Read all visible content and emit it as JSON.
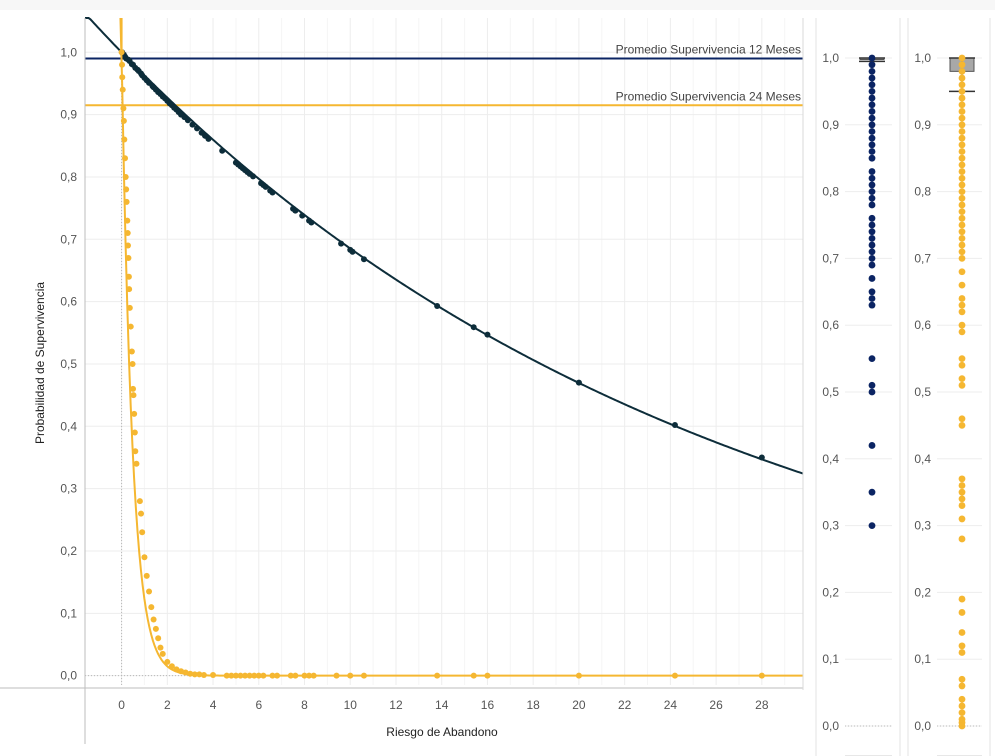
{
  "chart_data": [
    {
      "type": "scatter",
      "xlabel": "Riesgo de Abandono",
      "ylabel": "Probabilidad de Supervivencia",
      "xlim": [
        -1.6,
        29.8
      ],
      "ylim": [
        -0.015,
        1.055
      ],
      "x_ticks": [
        "0",
        "2",
        "4",
        "6",
        "8",
        "10",
        "12",
        "14",
        "16",
        "18",
        "20",
        "22",
        "24",
        "26",
        "28"
      ],
      "y_ticks": [
        "0,0",
        "0,1",
        "0,2",
        "0,3",
        "0,4",
        "0,5",
        "0,6",
        "0,7",
        "0,8",
        "0,9",
        "1,0"
      ],
      "grid": true,
      "reference_lines": [
        {
          "label": "Promedio Supervivencia 12 Meses",
          "y": 0.99,
          "color": "#0b2463"
        },
        {
          "label": "Promedio Supervivencia 24 Meses",
          "y": 0.915,
          "color": "#f5b731"
        }
      ],
      "series": [
        {
          "color": "#0d2d3a",
          "x": [
            0.02,
            0.05,
            0.1,
            0.15,
            0.2,
            0.3,
            0.35,
            0.45,
            0.5,
            0.6,
            0.7,
            0.75,
            0.85,
            0.9,
            1.0,
            1.1,
            1.2,
            1.35,
            1.4,
            1.5,
            1.6,
            1.7,
            1.8,
            1.9,
            2.0,
            2.1,
            2.2,
            2.3,
            2.4,
            2.5,
            2.6,
            2.75,
            2.9,
            3.1,
            3.3,
            3.5,
            3.65,
            3.8,
            4.4,
            5.0,
            5.1,
            5.2,
            5.3,
            5.4,
            5.5,
            5.6,
            5.75,
            6.1,
            6.2,
            6.3,
            6.5,
            6.6,
            7.5,
            7.6,
            7.9,
            8.2,
            8.3,
            9.6,
            10.0,
            10.1,
            10.6,
            13.8,
            15.4,
            16.0,
            20.0,
            24.2,
            28.0
          ],
          "y": [
            1.0,
            0.998,
            0.996,
            0.993,
            0.99,
            0.988,
            0.986,
            0.981,
            0.98,
            0.975,
            0.972,
            0.97,
            0.966,
            0.963,
            0.959,
            0.955,
            0.951,
            0.946,
            0.944,
            0.94,
            0.936,
            0.933,
            0.929,
            0.926,
            0.922,
            0.918,
            0.915,
            0.911,
            0.908,
            0.904,
            0.9,
            0.896,
            0.891,
            0.884,
            0.878,
            0.871,
            0.866,
            0.861,
            0.842,
            0.823,
            0.82,
            0.817,
            0.814,
            0.811,
            0.808,
            0.805,
            0.801,
            0.79,
            0.787,
            0.784,
            0.778,
            0.775,
            0.749,
            0.746,
            0.738,
            0.73,
            0.727,
            0.693,
            0.683,
            0.68,
            0.668,
            0.593,
            0.559,
            0.547,
            0.47,
            0.402,
            0.35
          ],
          "curve": {
            "x0": -1.6,
            "x1": 29.8,
            "rate": 0.0378
          }
        },
        {
          "color": "#f5b731",
          "x": [
            0.0,
            0.02,
            0.03,
            0.05,
            0.08,
            0.1,
            0.12,
            0.15,
            0.18,
            0.2,
            0.22,
            0.25,
            0.27,
            0.28,
            0.3,
            0.32,
            0.33,
            0.36,
            0.4,
            0.45,
            0.48,
            0.5,
            0.52,
            0.55,
            0.58,
            0.6,
            0.65,
            0.8,
            0.85,
            0.9,
            1.0,
            1.1,
            1.2,
            1.3,
            1.4,
            1.5,
            1.6,
            1.7,
            1.8,
            2.0,
            2.2,
            2.4,
            2.6,
            2.8,
            3.0,
            3.2,
            3.4,
            3.6,
            4.0,
            4.6,
            4.8,
            5.0,
            5.2,
            5.4,
            5.6,
            5.8,
            6.0,
            6.2,
            6.6,
            6.8,
            7.4,
            7.6,
            8.0,
            8.2,
            8.4,
            9.4,
            10.0,
            10.6,
            13.8,
            15.4,
            16.0,
            20.0,
            24.2,
            28.0
          ],
          "y": [
            1.0,
            0.98,
            0.96,
            0.94,
            0.91,
            0.89,
            0.86,
            0.83,
            0.8,
            0.78,
            0.76,
            0.73,
            0.71,
            0.69,
            0.67,
            0.64,
            0.62,
            0.59,
            0.56,
            0.52,
            0.5,
            0.46,
            0.45,
            0.42,
            0.39,
            0.36,
            0.34,
            0.28,
            0.26,
            0.23,
            0.19,
            0.16,
            0.135,
            0.11,
            0.09,
            0.075,
            0.06,
            0.045,
            0.035,
            0.022,
            0.015,
            0.01,
            0.007,
            0.005,
            0.003,
            0.002,
            0.002,
            0.001,
            0.001,
            0.0,
            0.0,
            0.0,
            0.0,
            0.0,
            0.0,
            0.0,
            0.0,
            0.0,
            0.0,
            0.0,
            0.0,
            0.0,
            0.0,
            0.0,
            0.0,
            0.0,
            0.0,
            0.0,
            0.0,
            0.0,
            0.0,
            0.0,
            0.0,
            0.0
          ],
          "curve": {
            "x0": -0.05,
            "x1": 29.8,
            "rate": 2.1
          }
        }
      ]
    },
    {
      "type": "scatter",
      "color": "#0b2463",
      "ylim": [
        0,
        1
      ],
      "y_ticks": [
        "0,0",
        "0,1",
        "0,2",
        "0,3",
        "0,4",
        "0,5",
        "0,6",
        "0,7",
        "0,8",
        "0,9",
        "1,0"
      ],
      "box": {
        "q1": 0.998,
        "q3": 1.0,
        "whisker_low": 0.995,
        "whisker_high": 1.0
      },
      "values": [
        1.0,
        0.99,
        0.98,
        0.97,
        0.96,
        0.95,
        0.94,
        0.93,
        0.92,
        0.91,
        0.9,
        0.89,
        0.88,
        0.87,
        0.86,
        0.85,
        0.83,
        0.82,
        0.81,
        0.8,
        0.79,
        0.78,
        0.76,
        0.75,
        0.74,
        0.73,
        0.72,
        0.71,
        0.7,
        0.69,
        0.67,
        0.65,
        0.64,
        0.63,
        0.55,
        0.51,
        0.5,
        0.42,
        0.35,
        0.3
      ]
    },
    {
      "type": "scatter",
      "color": "#f5b731",
      "ylim": [
        0,
        1
      ],
      "y_ticks": [
        "0,0",
        "0,1",
        "0,2",
        "0,3",
        "0,4",
        "0,5",
        "0,6",
        "0,7",
        "0,8",
        "0,9",
        "1,0"
      ],
      "box": {
        "q1": 0.98,
        "q3": 1.0,
        "whisker_low": 0.95,
        "whisker_high": 1.0
      },
      "values": [
        1.0,
        0.99,
        0.98,
        0.97,
        0.96,
        0.95,
        0.94,
        0.93,
        0.92,
        0.91,
        0.9,
        0.89,
        0.88,
        0.87,
        0.86,
        0.85,
        0.84,
        0.83,
        0.82,
        0.81,
        0.8,
        0.79,
        0.78,
        0.77,
        0.76,
        0.75,
        0.74,
        0.73,
        0.72,
        0.71,
        0.7,
        0.68,
        0.66,
        0.64,
        0.63,
        0.62,
        0.6,
        0.59,
        0.55,
        0.54,
        0.52,
        0.51,
        0.46,
        0.45,
        0.37,
        0.36,
        0.35,
        0.34,
        0.33,
        0.31,
        0.28,
        0.19,
        0.17,
        0.14,
        0.12,
        0.11,
        0.07,
        0.06,
        0.04,
        0.03,
        0.02,
        0.01,
        0.005,
        0.0
      ]
    }
  ]
}
